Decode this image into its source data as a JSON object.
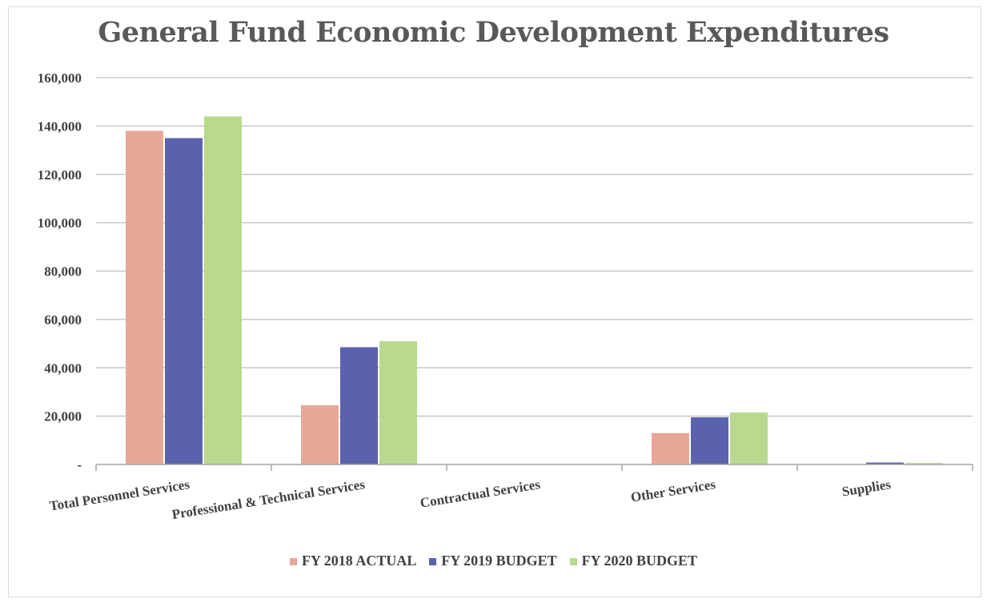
{
  "chart_data": {
    "type": "bar",
    "title": "General Fund Economic Development Expenditures",
    "categories": [
      "Total Personnel Services",
      "Professional & Technical Services",
      "Contractual Services",
      "Other Services",
      "Supplies"
    ],
    "series": [
      {
        "name": "FY 2018 ACTUAL",
        "color": "#e8a898",
        "values": [
          138000,
          24500,
          0,
          13000,
          0
        ]
      },
      {
        "name": "FY 2019 BUDGET",
        "color": "#5b62ad",
        "values": [
          135000,
          48500,
          0,
          19500,
          800
        ]
      },
      {
        "name": "FY 2020 BUDGET",
        "color": "#b9d98f",
        "values": [
          144000,
          51000,
          0,
          21500,
          600
        ]
      }
    ],
    "y_ticks": [
      {
        "value": 0,
        "label": "-"
      },
      {
        "value": 20000,
        "label": "20,000"
      },
      {
        "value": 40000,
        "label": "40,000"
      },
      {
        "value": 60000,
        "label": "60,000"
      },
      {
        "value": 80000,
        "label": "80,000"
      },
      {
        "value": 100000,
        "label": "100,000"
      },
      {
        "value": 120000,
        "label": "120,000"
      },
      {
        "value": 140000,
        "label": "140,000"
      },
      {
        "value": 160000,
        "label": "160,000"
      }
    ],
    "ylim": [
      0,
      160000
    ],
    "xlabel": "",
    "ylabel": "",
    "grid": true,
    "legend": "bottom"
  }
}
